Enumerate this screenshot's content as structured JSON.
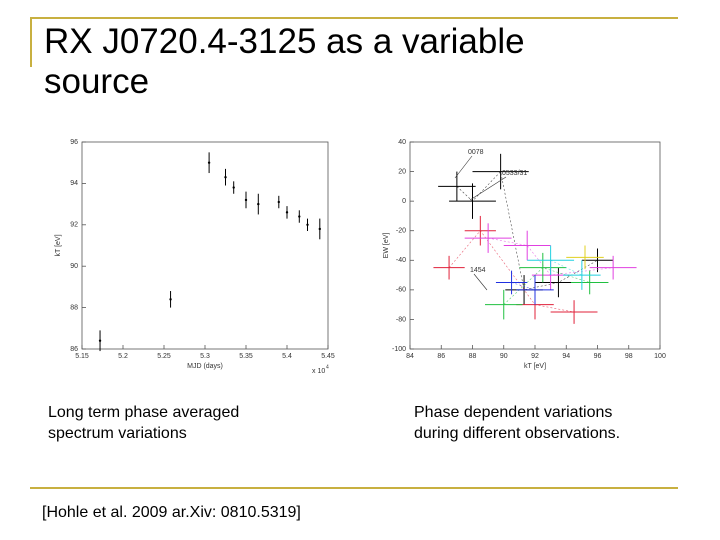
{
  "title": [
    "RX J0720.4-3125 as a variable",
    "source"
  ],
  "captions": [
    [
      "Long term phase averaged",
      "spectrum variations"
    ],
    [
      "Phase dependent variations",
      "during different observations."
    ]
  ],
  "citation": "[Hohle et al. 2009 ar.Xiv: 0810.5319]",
  "chart_data": [
    {
      "type": "errorbar",
      "xlabel": "MJD (days)",
      "ylabel": "kT [eV]",
      "x_multiplier": "x 10",
      "x_multiplier_exp": "4",
      "xlim": [
        5.15,
        5.45
      ],
      "xticks": [
        5.15,
        5.2,
        5.25,
        5.3,
        5.35,
        5.4,
        5.45
      ],
      "ylim": [
        86,
        96
      ],
      "yticks": [
        86,
        88,
        90,
        92,
        94,
        96
      ],
      "color": "#000000",
      "x": [
        5.172,
        5.258,
        5.305,
        5.325,
        5.335,
        5.35,
        5.365,
        5.39,
        5.4,
        5.415,
        5.425,
        5.44
      ],
      "values": [
        86.4,
        88.4,
        95.0,
        94.3,
        93.8,
        93.2,
        93.0,
        93.1,
        92.6,
        92.4,
        92.0,
        91.8
      ],
      "yerr": [
        0.5,
        0.4,
        0.5,
        0.4,
        0.3,
        0.4,
        0.5,
        0.3,
        0.3,
        0.3,
        0.3,
        0.5
      ]
    },
    {
      "type": "cross",
      "xlabel": "kT [eV]",
      "ylabel": "EW [eV]",
      "xlim": [
        84,
        100
      ],
      "xticks": [
        84,
        86,
        88,
        90,
        92,
        94,
        96,
        98,
        100
      ],
      "ylim": [
        -100,
        40
      ],
      "yticks": [
        -100,
        -80,
        -60,
        -40,
        -20,
        0,
        20,
        40
      ],
      "annotations": [
        "0078",
        "0533/31",
        "1454"
      ],
      "series": [
        {
          "color": "#000000",
          "x": [
            87.0,
            88.0,
            89.8,
            91.3,
            93.5,
            96.0
          ],
          "values": [
            10,
            0,
            20,
            -60,
            -55,
            -40
          ],
          "xerr": [
            1.2,
            1.5,
            1.8,
            1.2,
            1.5,
            1.0
          ],
          "yerr": [
            10,
            12,
            12,
            10,
            10,
            8
          ]
        },
        {
          "color": "#e0203a",
          "x": [
            86.5,
            88.5,
            92.0,
            94.5
          ],
          "values": [
            -45,
            -20,
            -70,
            -75
          ],
          "xerr": [
            1.0,
            1.0,
            1.2,
            1.5
          ],
          "yerr": [
            8,
            10,
            10,
            8
          ]
        },
        {
          "color": "#e040e0",
          "x": [
            89.0,
            91.5,
            93.0,
            97.0
          ],
          "values": [
            -25,
            -30,
            -50,
            -45
          ],
          "xerr": [
            1.5,
            1.5,
            1.2,
            1.5
          ],
          "yerr": [
            10,
            10,
            10,
            8
          ]
        },
        {
          "color": "#20c040",
          "x": [
            90.0,
            92.5,
            95.5
          ],
          "values": [
            -70,
            -45,
            -55
          ],
          "xerr": [
            1.2,
            1.5,
            1.2
          ],
          "yerr": [
            10,
            10,
            8
          ]
        },
        {
          "color": "#20d0e0",
          "x": [
            93.0,
            95.0
          ],
          "values": [
            -40,
            -50
          ],
          "xerr": [
            1.5,
            1.2
          ],
          "yerr": [
            10,
            10
          ]
        },
        {
          "color": "#2030e0",
          "x": [
            90.5,
            92.0
          ],
          "values": [
            -55,
            -60
          ],
          "xerr": [
            1.0,
            1.2
          ],
          "yerr": [
            8,
            10
          ]
        },
        {
          "color": "#e0d020",
          "x": [
            95.2
          ],
          "values": [
            -38
          ],
          "xerr": [
            1.2
          ],
          "yerr": [
            8
          ]
        }
      ]
    }
  ]
}
